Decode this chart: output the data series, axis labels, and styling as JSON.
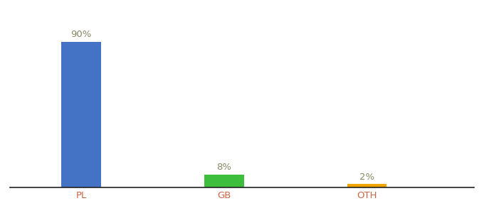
{
  "categories": [
    "PL",
    "GB",
    "OTH"
  ],
  "values": [
    90,
    8,
    2
  ],
  "bar_colors": [
    "#4472c4",
    "#3dbf3d",
    "#f0a500"
  ],
  "value_labels": [
    "90%",
    "8%",
    "2%"
  ],
  "ylim": [
    0,
    100
  ],
  "background_color": "#ffffff",
  "label_fontsize": 9.5,
  "tick_fontsize": 9.5,
  "bar_width": 0.55,
  "x_positions": [
    1,
    3,
    5
  ],
  "xlim": [
    0,
    6.5
  ],
  "label_color": "#888866",
  "tick_color": "#cc6644"
}
